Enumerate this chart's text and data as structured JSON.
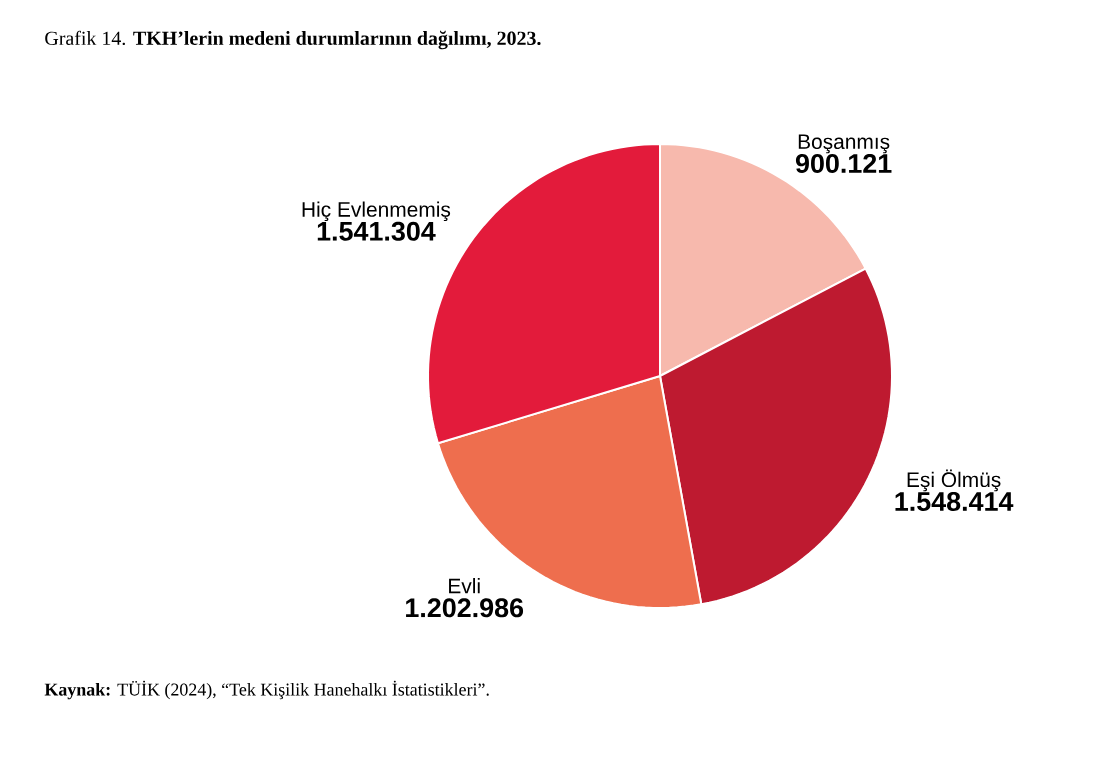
{
  "chart_data": {
    "type": "pie",
    "title": "Grafik 14. **TKH’lerin medeni durumlarının dağılımı, 2023.**",
    "categories": [
      "Boşanmış",
      "Eşi Ölmüş",
      "Evli",
      "Hiç Evlenmemiş"
    ],
    "values": [
      900121,
      1548414,
      1202986,
      1541304
    ],
    "value_labels": [
      "900.121",
      "1.548.414",
      "1.202.986",
      "1.541.304"
    ],
    "colors": [
      "#f7b9ad",
      "#be1a30",
      "#ee6e4e",
      "#e31b3b"
    ],
    "annotations": [
      "**Kaynak:** TÜİK (2024), “Tek Kişilik Hanehalkı İstatistikleri”."
    ]
  }
}
